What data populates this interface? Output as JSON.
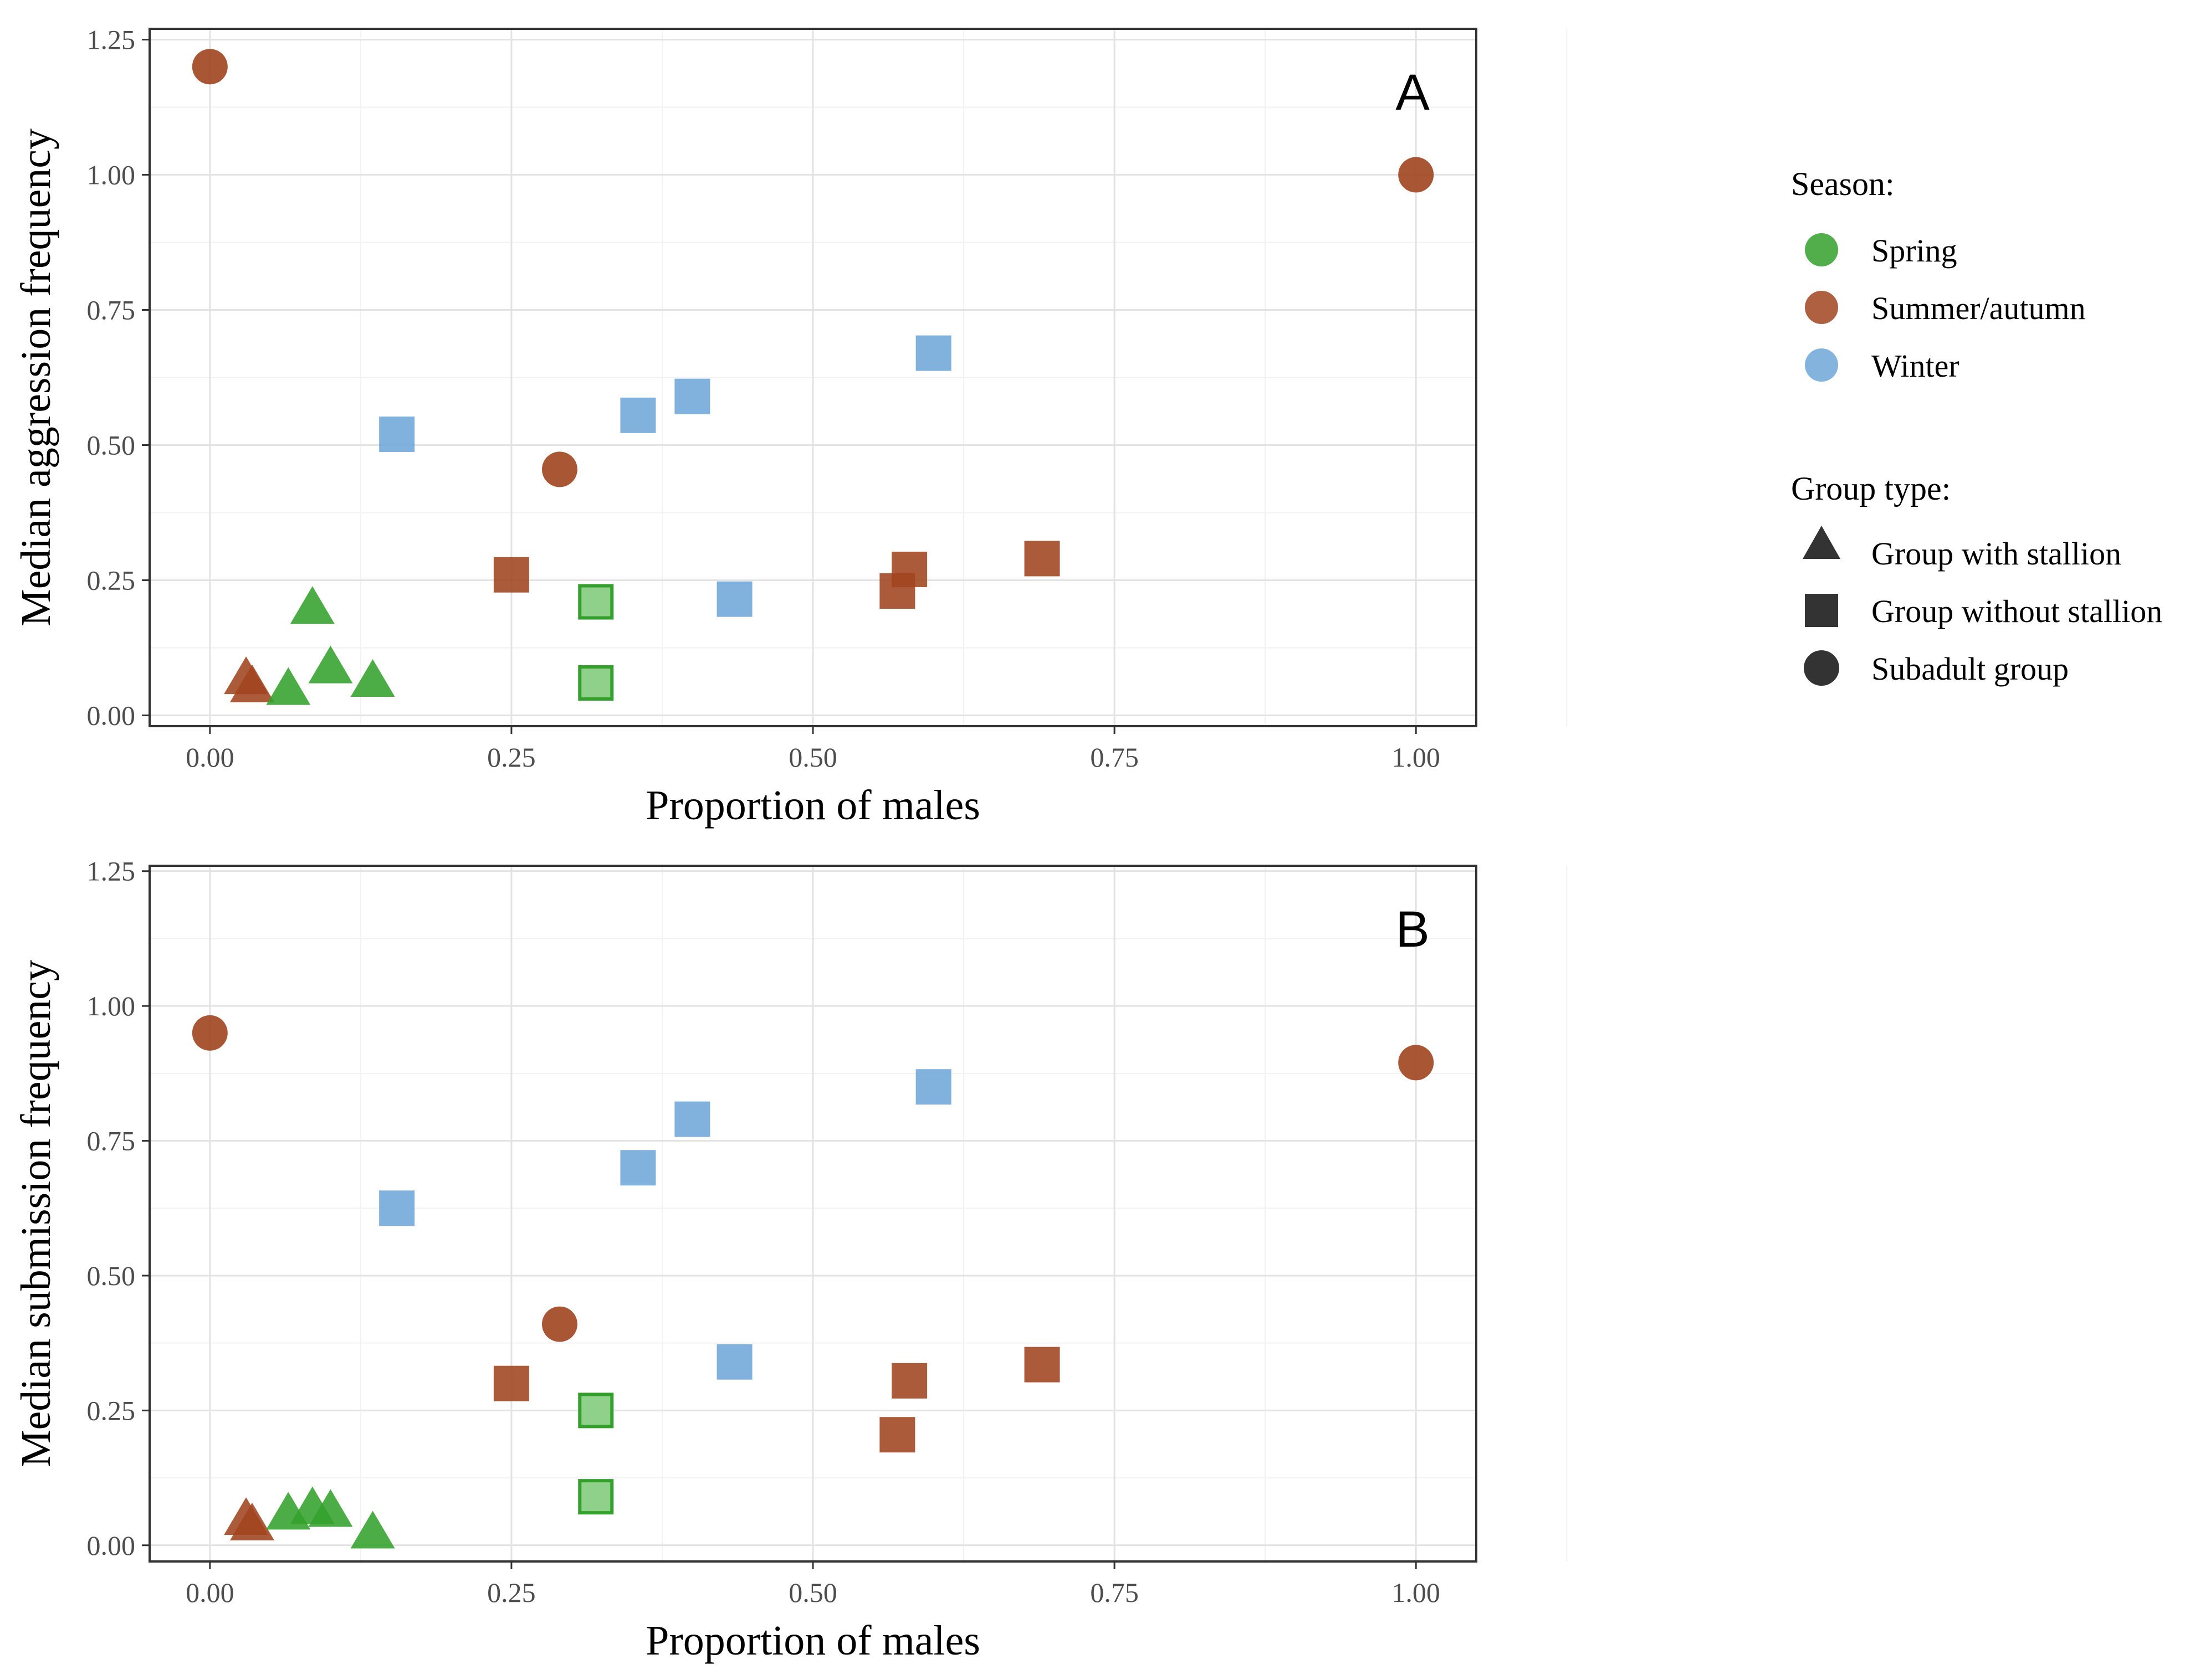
{
  "colors": {
    "Spring": "#33a02c",
    "Summer/autumn": "#a0441f",
    "Winter": "#6ea7d8"
  },
  "chart_data": [
    {
      "type": "scatter",
      "panel": "A",
      "xlabel": "Proportion of males",
      "ylabel": "Median aggression frequency",
      "xlim": [
        -0.05,
        1.05
      ],
      "ylim": [
        -0.02,
        1.27
      ],
      "xticks": [
        "0.00",
        "0.25",
        "0.50",
        "0.75",
        "1.00"
      ],
      "yticks": [
        "0.00",
        "0.25",
        "0.50",
        "0.75",
        "1.00",
        "1.25"
      ],
      "points": [
        {
          "x": 0.0,
          "y": 1.2,
          "season": "Summer/autumn",
          "group": "Subadult group"
        },
        {
          "x": 1.0,
          "y": 1.0,
          "season": "Summer/autumn",
          "group": "Subadult group"
        },
        {
          "x": 0.29,
          "y": 0.455,
          "season": "Summer/autumn",
          "group": "Subadult group"
        },
        {
          "x": 0.25,
          "y": 0.26,
          "season": "Summer/autumn",
          "group": "Group without stallion"
        },
        {
          "x": 0.57,
          "y": 0.23,
          "season": "Summer/autumn",
          "group": "Group without stallion"
        },
        {
          "x": 0.58,
          "y": 0.27,
          "season": "Summer/autumn",
          "group": "Group without stallion"
        },
        {
          "x": 0.69,
          "y": 0.29,
          "season": "Summer/autumn",
          "group": "Group without stallion"
        },
        {
          "x": 0.03,
          "y": 0.07,
          "season": "Summer/autumn",
          "group": "Group with stallion"
        },
        {
          "x": 0.035,
          "y": 0.055,
          "season": "Summer/autumn",
          "group": "Group with stallion"
        },
        {
          "x": 0.155,
          "y": 0.52,
          "season": "Winter",
          "group": "Group without stallion"
        },
        {
          "x": 0.355,
          "y": 0.555,
          "season": "Winter",
          "group": "Group without stallion"
        },
        {
          "x": 0.4,
          "y": 0.59,
          "season": "Winter",
          "group": "Group without stallion"
        },
        {
          "x": 0.6,
          "y": 0.67,
          "season": "Winter",
          "group": "Group without stallion"
        },
        {
          "x": 0.435,
          "y": 0.215,
          "season": "Winter",
          "group": "Group without stallion"
        },
        {
          "x": 0.32,
          "y": 0.21,
          "season": "Spring",
          "group": "Group without stallion"
        },
        {
          "x": 0.32,
          "y": 0.06,
          "season": "Spring",
          "group": "Group without stallion"
        },
        {
          "x": 0.085,
          "y": 0.2,
          "season": "Spring",
          "group": "Group with stallion"
        },
        {
          "x": 0.1,
          "y": 0.09,
          "season": "Spring",
          "group": "Group with stallion"
        },
        {
          "x": 0.065,
          "y": 0.05,
          "season": "Spring",
          "group": "Group with stallion"
        },
        {
          "x": 0.135,
          "y": 0.065,
          "season": "Spring",
          "group": "Group with stallion"
        }
      ]
    },
    {
      "type": "scatter",
      "panel": "B",
      "xlabel": "Proportion of males",
      "ylabel": "Median submission frequency",
      "xlim": [
        -0.05,
        1.05
      ],
      "ylim": [
        -0.03,
        1.26
      ],
      "xticks": [
        "0.00",
        "0.25",
        "0.50",
        "0.75",
        "1.00"
      ],
      "yticks": [
        "0.00",
        "0.25",
        "0.50",
        "0.75",
        "1.00",
        "1.25"
      ],
      "points": [
        {
          "x": 0.0,
          "y": 0.95,
          "season": "Summer/autumn",
          "group": "Subadult group"
        },
        {
          "x": 1.0,
          "y": 0.895,
          "season": "Summer/autumn",
          "group": "Subadult group"
        },
        {
          "x": 0.29,
          "y": 0.41,
          "season": "Summer/autumn",
          "group": "Subadult group"
        },
        {
          "x": 0.25,
          "y": 0.3,
          "season": "Summer/autumn",
          "group": "Group without stallion"
        },
        {
          "x": 0.57,
          "y": 0.205,
          "season": "Summer/autumn",
          "group": "Group without stallion"
        },
        {
          "x": 0.58,
          "y": 0.305,
          "season": "Summer/autumn",
          "group": "Group without stallion"
        },
        {
          "x": 0.69,
          "y": 0.335,
          "season": "Summer/autumn",
          "group": "Group without stallion"
        },
        {
          "x": 0.03,
          "y": 0.05,
          "season": "Summer/autumn",
          "group": "Group with stallion"
        },
        {
          "x": 0.035,
          "y": 0.04,
          "season": "Summer/autumn",
          "group": "Group with stallion"
        },
        {
          "x": 0.155,
          "y": 0.625,
          "season": "Winter",
          "group": "Group without stallion"
        },
        {
          "x": 0.355,
          "y": 0.7,
          "season": "Winter",
          "group": "Group without stallion"
        },
        {
          "x": 0.4,
          "y": 0.79,
          "season": "Winter",
          "group": "Group without stallion"
        },
        {
          "x": 0.6,
          "y": 0.85,
          "season": "Winter",
          "group": "Group without stallion"
        },
        {
          "x": 0.435,
          "y": 0.34,
          "season": "Winter",
          "group": "Group without stallion"
        },
        {
          "x": 0.32,
          "y": 0.25,
          "season": "Spring",
          "group": "Group without stallion"
        },
        {
          "x": 0.32,
          "y": 0.09,
          "season": "Spring",
          "group": "Group without stallion"
        },
        {
          "x": 0.065,
          "y": 0.06,
          "season": "Spring",
          "group": "Group with stallion"
        },
        {
          "x": 0.085,
          "y": 0.07,
          "season": "Spring",
          "group": "Group with stallion"
        },
        {
          "x": 0.1,
          "y": 0.065,
          "season": "Spring",
          "group": "Group with stallion"
        },
        {
          "x": 0.135,
          "y": 0.025,
          "season": "Spring",
          "group": "Group with stallion"
        }
      ]
    }
  ],
  "legend": {
    "season_title": "Season:",
    "season_items": [
      "Spring",
      "Summer/autumn",
      "Winter"
    ],
    "group_title": "Group type:",
    "group_items": [
      "Group with stallion",
      "Group without stallion",
      "Subadult group"
    ]
  }
}
